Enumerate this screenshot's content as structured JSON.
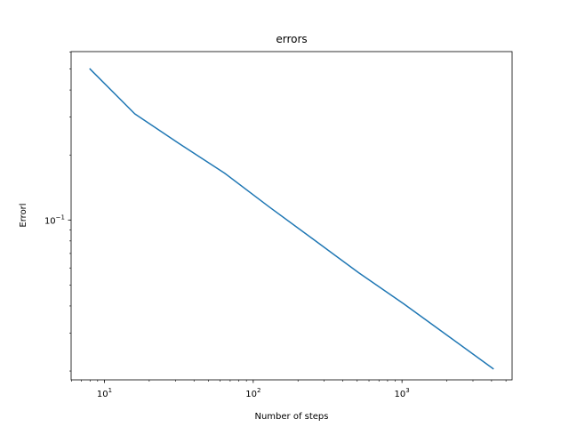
{
  "chart_data": {
    "type": "line",
    "title": "errors",
    "xlabel": "Number of steps",
    "ylabel": "Errorl",
    "xscale": "log",
    "yscale": "log",
    "xlim": [
      5.97,
      5497
    ],
    "ylim": [
      0.0182,
      0.602
    ],
    "grid": false,
    "x_ticks": [
      {
        "base": "10",
        "exp": "1",
        "value": 10
      },
      {
        "base": "10",
        "exp": "2",
        "value": 100
      },
      {
        "base": "10",
        "exp": "3",
        "value": 1000
      }
    ],
    "y_ticks": [
      {
        "base": "10",
        "exp": "−1",
        "value": 0.1
      }
    ],
    "series": [
      {
        "color": "#1f77b4",
        "x": [
          8,
          16,
          32,
          64,
          128,
          256,
          512,
          1024,
          2048,
          4096
        ],
        "y": [
          0.5,
          0.31,
          0.225,
          0.165,
          0.115,
          0.081,
          0.057,
          0.041,
          0.029,
          0.0205
        ]
      }
    ]
  }
}
